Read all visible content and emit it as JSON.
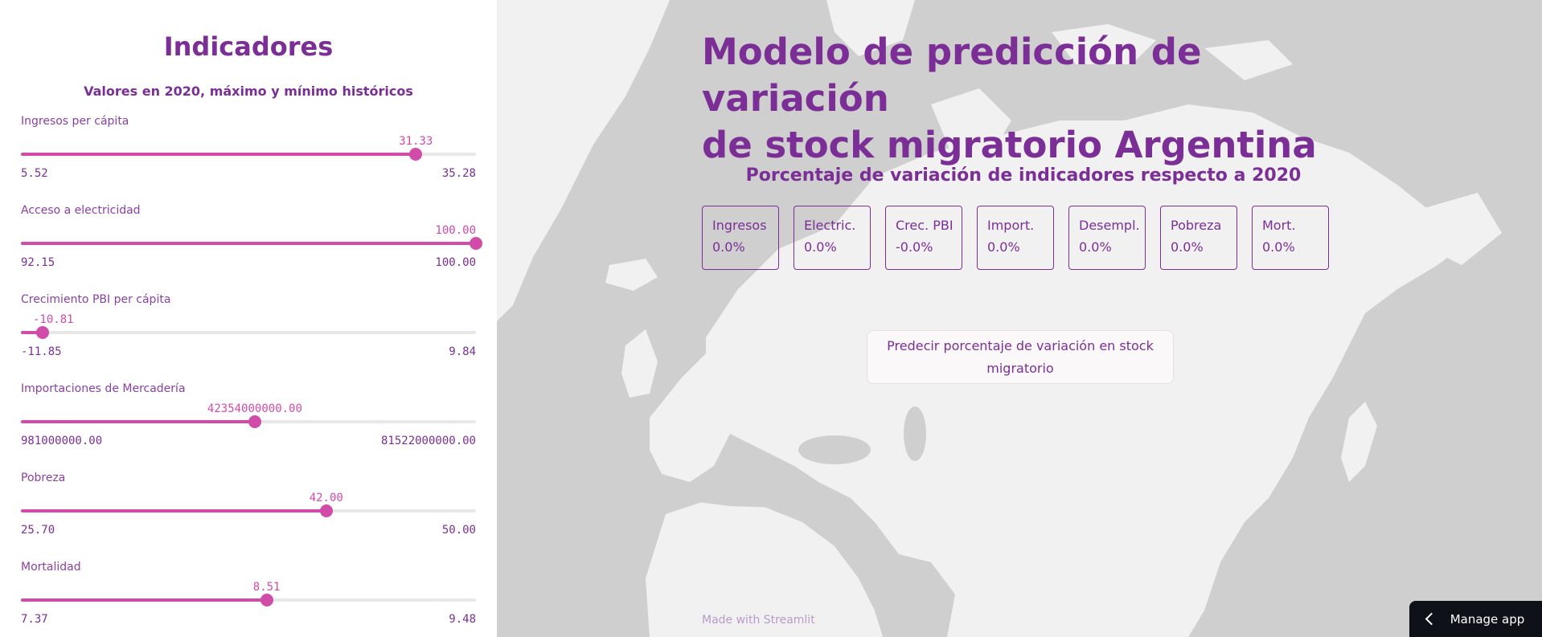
{
  "sidebar": {
    "title": "Indicadores",
    "subtitle": "Valores en 2020, máximo y mínimo históricos",
    "sliders": [
      {
        "label": "Ingresos per cápita",
        "value": "31.33",
        "min": "5.52",
        "max": "35.28",
        "fraction": 0.868
      },
      {
        "label": "Acceso a electricidad",
        "value": "100.00",
        "min": "92.15",
        "max": "100.00",
        "fraction": 1.0
      },
      {
        "label": "Crecimiento PBI per cápita",
        "value": "-10.81",
        "min": "-11.85",
        "max": "9.84",
        "fraction": 0.048
      },
      {
        "label": "Importaciones de Mercadería",
        "value": "42354000000.00",
        "min": "981000000.00",
        "max": "81522000000.00",
        "fraction": 0.514
      },
      {
        "label": "Pobreza",
        "value": "42.00",
        "min": "25.70",
        "max": "50.00",
        "fraction": 0.671
      },
      {
        "label": "Mortalidad",
        "value": "8.51",
        "min": "7.37",
        "max": "9.48",
        "fraction": 0.54
      }
    ]
  },
  "main": {
    "title_line1": "Modelo de predicción de variación",
    "title_line2": "de stock migratorio Argentina",
    "subtitle": "Porcentaje de variación de indicadores respecto a 2020",
    "metrics": [
      {
        "label": "Ingresos",
        "value": "0.0%"
      },
      {
        "label": "Electric.",
        "value": "0.0%"
      },
      {
        "label": "Crec. PBI",
        "value": "-0.0%"
      },
      {
        "label": "Import.",
        "value": "0.0%"
      },
      {
        "label": "Desempl.",
        "value": "0.0%"
      },
      {
        "label": "Pobreza",
        "value": "0.0%"
      },
      {
        "label": "Mort.",
        "value": "0.0%"
      }
    ],
    "predict_button": "Predecir porcentaje de variación en stock migratorio",
    "footer": "Made with Streamlit",
    "manage_app": "Manage app"
  },
  "colors": {
    "accent": "#7b2f96",
    "slider": "#d14ba9",
    "map_land": "#f1f1f1",
    "map_ocean": "#cfcfcf"
  }
}
